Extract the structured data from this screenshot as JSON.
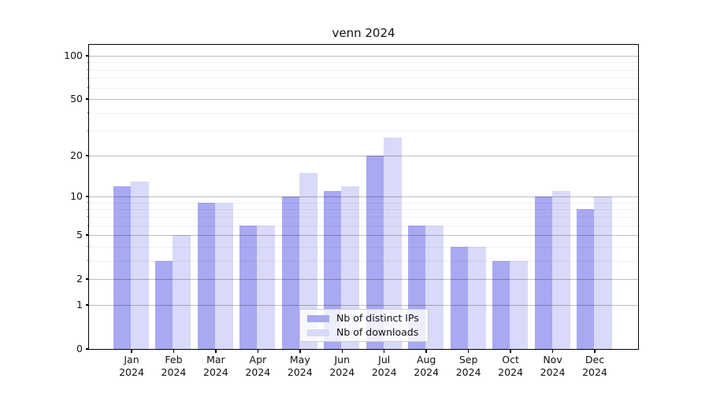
{
  "chart_data": {
    "type": "bar",
    "title": "venn 2024",
    "categories": [
      "Jan",
      "Feb",
      "Mar",
      "Apr",
      "May",
      "Jun",
      "Jul",
      "Aug",
      "Sep",
      "Oct",
      "Nov",
      "Dec"
    ],
    "x_tick_second_line": "2024",
    "series": [
      {
        "name": "Nb of distinct IPs",
        "color": "#a8a8f3",
        "values": [
          12,
          3,
          9,
          6,
          10,
          11,
          20,
          6,
          4,
          3,
          10,
          8
        ]
      },
      {
        "name": "Nb of downloads",
        "color": "#d9d9f9",
        "values": [
          13,
          5,
          9,
          6,
          15,
          12,
          27,
          6,
          4,
          3,
          11,
          10
        ]
      }
    ],
    "xlabel": "",
    "ylabel": "",
    "yscale": "log1p",
    "ylim": [
      0,
      119
    ],
    "y_ticks_major": [
      0,
      1,
      2,
      5,
      10,
      20,
      50,
      100
    ],
    "y_ticks_minor": [
      3,
      4,
      6,
      7,
      8,
      9,
      30,
      40,
      60,
      70,
      80,
      90
    ],
    "grid": "on, drawn above bars",
    "legend_position": "lower center"
  },
  "colors": {
    "bar_distinct_ips": "#a8a8f3",
    "bar_downloads": "#d9d9f9",
    "grid_major": "#bdbdbd",
    "grid_minor": "#f1f1f1",
    "spine": "#000000",
    "legend_border": "#cccccc",
    "background": "#ffffff"
  }
}
